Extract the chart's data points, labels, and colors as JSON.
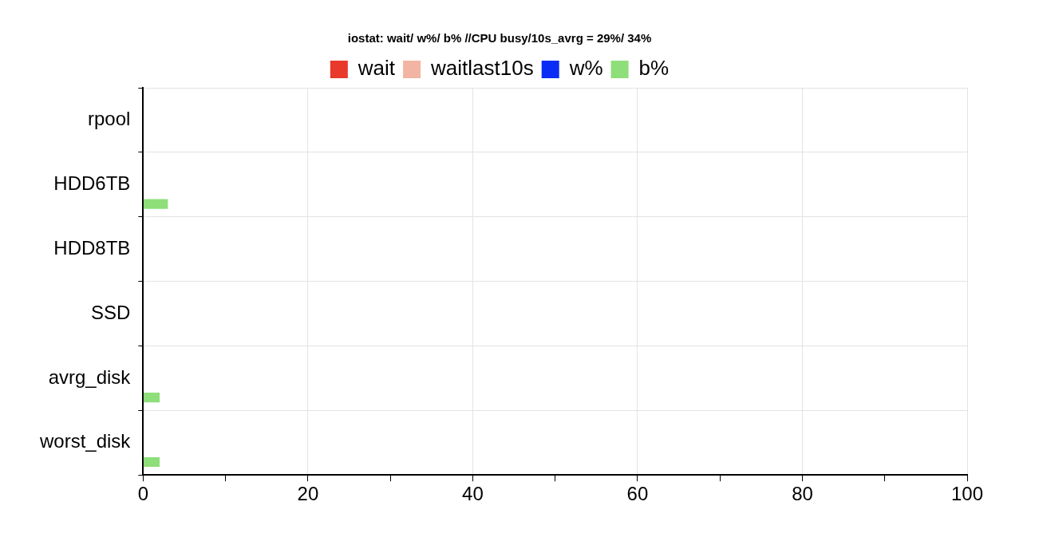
{
  "chart_data": {
    "type": "bar",
    "orientation": "horizontal",
    "title": "iostat: wait/ w%/ b% //CPU busy/10s_avrg = 29%/ 34%",
    "categories": [
      "rpool",
      "HDD6TB",
      "HDD8TB",
      "SSD",
      "avrg_disk",
      "worst_disk"
    ],
    "series": [
      {
        "name": "wait",
        "color": "#e8392a",
        "values": [
          0,
          0,
          0,
          0,
          0,
          0
        ]
      },
      {
        "name": "waitlast10s",
        "color": "#f2b5a3",
        "values": [
          0,
          0,
          0,
          0,
          0,
          0
        ]
      },
      {
        "name": "w%",
        "color": "#0a2cf5",
        "values": [
          0,
          0,
          0,
          0,
          0,
          0
        ]
      },
      {
        "name": "b%",
        "color": "#8ede7a",
        "values": [
          0,
          3,
          0,
          0,
          2,
          2
        ]
      }
    ],
    "xlim": [
      0,
      100
    ],
    "xticks": [
      0,
      {
        "value": 10,
        "label": null
      },
      20,
      {
        "value": 30,
        "label": null
      },
      40,
      {
        "value": 50,
        "label": null
      },
      60,
      {
        "value": 70,
        "label": null
      },
      80,
      {
        "value": 90,
        "label": null
      },
      100
    ],
    "grid": true,
    "legend": "top"
  }
}
